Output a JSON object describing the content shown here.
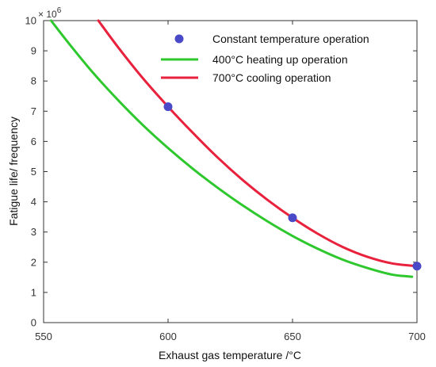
{
  "chart_data": {
    "type": "line",
    "title": "",
    "xlabel": "Exhaust gas temperature /°C",
    "ylabel": "Fatigue life/ frequency",
    "y_multiplier_base": "× 10",
    "y_multiplier_exp": "6",
    "xlim": [
      550,
      700
    ],
    "ylim": [
      0,
      10
    ],
    "xticks": [
      "550",
      "600",
      "650",
      "700"
    ],
    "yticks": [
      "0",
      "1",
      "2",
      "3",
      "4",
      "5",
      "6",
      "7",
      "8",
      "9",
      "10"
    ],
    "legend_position": "top-right",
    "grid": false,
    "series": [
      {
        "name": "Constant temperature operation",
        "kind": "scatter",
        "color": "#4a4ac8",
        "x": [
          600,
          650,
          700
        ],
        "y": [
          7.15,
          3.47,
          1.87
        ]
      },
      {
        "name": "400°C heating up operation",
        "kind": "line",
        "color": "#2ec82e",
        "x": [
          553,
          560,
          570,
          580,
          590,
          600,
          610,
          620,
          630,
          640,
          650,
          660,
          670,
          680,
          690,
          698
        ],
        "y": [
          10.0,
          9.26,
          8.26,
          7.36,
          6.53,
          5.78,
          5.09,
          4.46,
          3.88,
          3.35,
          2.87,
          2.45,
          2.09,
          1.81,
          1.59,
          1.52
        ]
      },
      {
        "name": "700°C cooling operation",
        "kind": "line",
        "color": "#e8213c",
        "x": [
          572,
          580,
          590,
          600,
          610,
          620,
          630,
          640,
          650,
          660,
          670,
          680,
          690,
          700
        ],
        "y": [
          10.0,
          9.11,
          8.08,
          7.15,
          6.28,
          5.46,
          4.72,
          4.06,
          3.47,
          2.95,
          2.51,
          2.18,
          1.96,
          1.87
        ]
      }
    ]
  }
}
